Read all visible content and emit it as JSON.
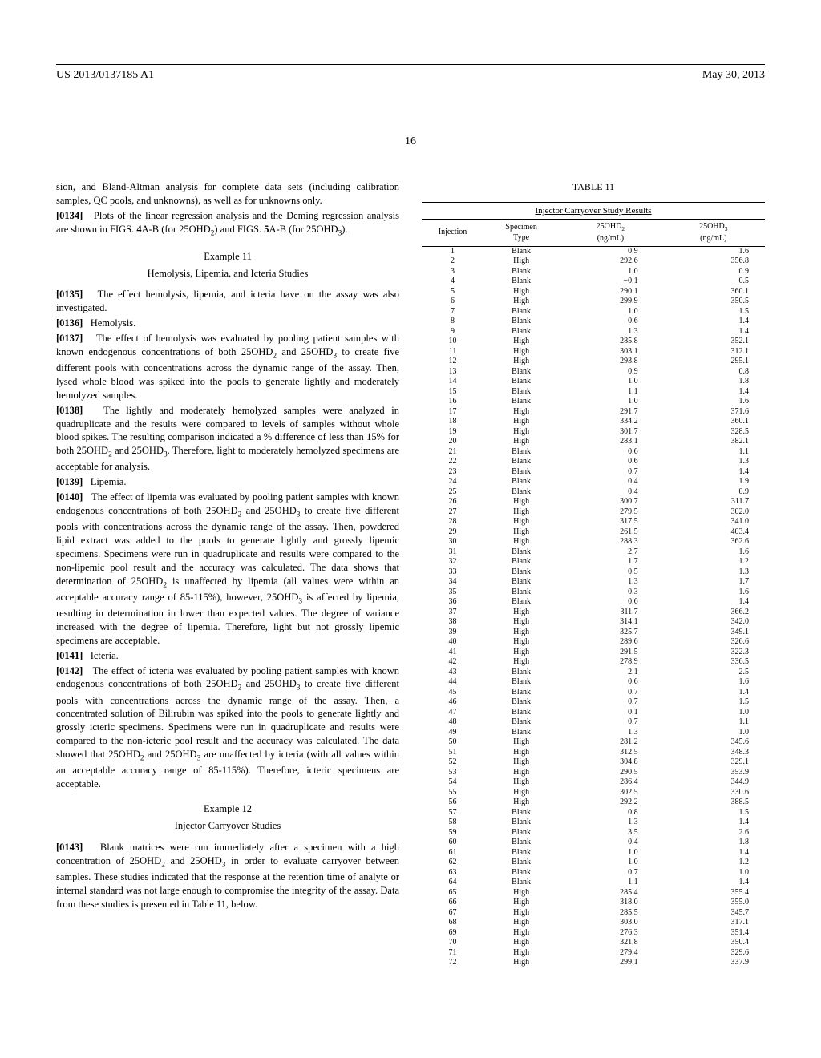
{
  "header": {
    "left": "US 2013/0137185 A1",
    "right": "May 30, 2013",
    "page_number": "16"
  },
  "left_column": {
    "intro_text": "sion, and Bland-Altman analysis for complete data sets (including calibration samples, QC pools, and unknowns), as well as for unknowns only.",
    "paragraphs": [
      {
        "num": "[0134]",
        "text": "Plots of the linear regression analysis and the Deming regression analysis are shown in FIGS. 4A-B (for 25OHD₂) and FIGS. 5A-B (for 25OHD₃)."
      },
      {
        "num": "[0135]",
        "text": "The effect hemolysis, lipemia, and icteria have on the assay was also investigated."
      },
      {
        "num": "[0136]",
        "text": "Hemolysis."
      },
      {
        "num": "[0137]",
        "text": "The effect of hemolysis was evaluated by pooling patient samples with known endogenous concentrations of both 25OHD₂ and 25OHD₃ to create five different pools with concentrations across the dynamic range of the assay. Then, lysed whole blood was spiked into the pools to generate lightly and moderately hemolyzed samples."
      },
      {
        "num": "[0138]",
        "text": "The lightly and moderately hemolyzed samples were analyzed in quadruplicate and the results were compared to levels of samples without whole blood spikes. The resulting comparison indicated a % difference of less than 15% for both 25OHD₂ and 25OHD₃. Therefore, light to moderately hemolyzed specimens are acceptable for analysis."
      },
      {
        "num": "[0139]",
        "text": "Lipemia."
      },
      {
        "num": "[0140]",
        "text": "The effect of lipemia was evaluated by pooling patient samples with known endogenous concentrations of both 25OHD₂ and 25OHD₃ to create five different pools with concentrations across the dynamic range of the assay. Then, powdered lipid extract was added to the pools to generate lightly and grossly lipemic specimens. Specimens were run in quadruplicate and results were compared to the non-lipemic pool result and the accuracy was calculated. The data shows that determination of 25OHD₂ is unaffected by lipemia (all values were within an acceptable accuracy range of 85-115%), however, 25OHD₃ is affected by lipemia, resulting in determination in lower than expected values. The degree of variance increased with the degree of lipemia. Therefore, light but not grossly lipemic specimens are acceptable."
      },
      {
        "num": "[0141]",
        "text": "Icteria."
      },
      {
        "num": "[0142]",
        "text": "The effect of icteria was evaluated by pooling patient samples with known endogenous concentrations of both 25OHD₂ and 25OHD₃ to create five different pools with concentrations across the dynamic range of the assay. Then, a concentrated solution of Bilirubin was spiked into the pools to generate lightly and grossly icteric specimens. Specimens were run in quadruplicate and results were compared to the non-icteric pool result and the accuracy was calculated. The data showed that 25OHD₂ and 25OHD₃ are unaffected by icteria (with all values within an acceptable accuracy range of 85-115%). Therefore, icteric specimens are acceptable."
      },
      {
        "num": "[0143]",
        "text": "Blank matrices were run immediately after a specimen with a high concentration of 25OHD₂ and 25OHD₃ in order to evaluate carryover between samples. These studies indicated that the response at the retention time of analyte or internal standard was not large enough to compromise the integrity of the assay. Data from these studies is presented in Table 11, below."
      }
    ],
    "example11_title": "Example 11",
    "example11_subtitle": "Hemolysis, Lipemia, and Icteria Studies",
    "example12_title": "Example 12",
    "example12_subtitle": "Injector Carryover Studies"
  },
  "table": {
    "title": "TABLE 11",
    "caption": "Injector Carryover Study Results",
    "columns": [
      "Injection",
      "Specimen Type",
      "25OHD₂ (ng/mL)",
      "25OHD₃ (ng/mL)"
    ],
    "rows": [
      [
        "1",
        "Blank",
        "0.9",
        "1.6"
      ],
      [
        "2",
        "High",
        "292.6",
        "356.8"
      ],
      [
        "3",
        "Blank",
        "1.0",
        "0.9"
      ],
      [
        "4",
        "Blank",
        "−0.1",
        "0.5"
      ],
      [
        "5",
        "High",
        "290.1",
        "360.1"
      ],
      [
        "6",
        "High",
        "299.9",
        "350.5"
      ],
      [
        "7",
        "Blank",
        "1.0",
        "1.5"
      ],
      [
        "8",
        "Blank",
        "0.6",
        "1.4"
      ],
      [
        "9",
        "Blank",
        "1.3",
        "1.4"
      ],
      [
        "10",
        "High",
        "285.8",
        "352.1"
      ],
      [
        "11",
        "High",
        "303.1",
        "312.1"
      ],
      [
        "12",
        "High",
        "293.8",
        "295.1"
      ],
      [
        "13",
        "Blank",
        "0.9",
        "0.8"
      ],
      [
        "14",
        "Blank",
        "1.0",
        "1.8"
      ],
      [
        "15",
        "Blank",
        "1.1",
        "1.4"
      ],
      [
        "16",
        "Blank",
        "1.0",
        "1.6"
      ],
      [
        "17",
        "High",
        "291.7",
        "371.6"
      ],
      [
        "18",
        "High",
        "334.2",
        "360.1"
      ],
      [
        "19",
        "High",
        "301.7",
        "328.5"
      ],
      [
        "20",
        "High",
        "283.1",
        "382.1"
      ],
      [
        "21",
        "Blank",
        "0.6",
        "1.1"
      ],
      [
        "22",
        "Blank",
        "0.6",
        "1.3"
      ],
      [
        "23",
        "Blank",
        "0.7",
        "1.4"
      ],
      [
        "24",
        "Blank",
        "0.4",
        "1.9"
      ],
      [
        "25",
        "Blank",
        "0.4",
        "0.9"
      ],
      [
        "26",
        "High",
        "300.7",
        "311.7"
      ],
      [
        "27",
        "High",
        "279.5",
        "302.0"
      ],
      [
        "28",
        "High",
        "317.5",
        "341.0"
      ],
      [
        "29",
        "High",
        "261.5",
        "403.4"
      ],
      [
        "30",
        "High",
        "288.3",
        "362.6"
      ],
      [
        "31",
        "Blank",
        "2.7",
        "1.6"
      ],
      [
        "32",
        "Blank",
        "1.7",
        "1.2"
      ],
      [
        "33",
        "Blank",
        "0.5",
        "1.3"
      ],
      [
        "34",
        "Blank",
        "1.3",
        "1.7"
      ],
      [
        "35",
        "Blank",
        "0.3",
        "1.6"
      ],
      [
        "36",
        "Blank",
        "0.6",
        "1.4"
      ],
      [
        "37",
        "High",
        "311.7",
        "366.2"
      ],
      [
        "38",
        "High",
        "314.1",
        "342.0"
      ],
      [
        "39",
        "High",
        "325.7",
        "349.1"
      ],
      [
        "40",
        "High",
        "289.6",
        "326.6"
      ],
      [
        "41",
        "High",
        "291.5",
        "322.3"
      ],
      [
        "42",
        "High",
        "278.9",
        "336.5"
      ],
      [
        "43",
        "Blank",
        "2.1",
        "2.5"
      ],
      [
        "44",
        "Blank",
        "0.6",
        "1.6"
      ],
      [
        "45",
        "Blank",
        "0.7",
        "1.4"
      ],
      [
        "46",
        "Blank",
        "0.7",
        "1.5"
      ],
      [
        "47",
        "Blank",
        "0.1",
        "1.0"
      ],
      [
        "48",
        "Blank",
        "0.7",
        "1.1"
      ],
      [
        "49",
        "Blank",
        "1.3",
        "1.0"
      ],
      [
        "50",
        "High",
        "281.2",
        "345.6"
      ],
      [
        "51",
        "High",
        "312.5",
        "348.3"
      ],
      [
        "52",
        "High",
        "304.8",
        "329.1"
      ],
      [
        "53",
        "High",
        "290.5",
        "353.9"
      ],
      [
        "54",
        "High",
        "286.4",
        "344.9"
      ],
      [
        "55",
        "High",
        "302.5",
        "330.6"
      ],
      [
        "56",
        "High",
        "292.2",
        "388.5"
      ],
      [
        "57",
        "Blank",
        "0.8",
        "1.5"
      ],
      [
        "58",
        "Blank",
        "1.3",
        "1.4"
      ],
      [
        "59",
        "Blank",
        "3.5",
        "2.6"
      ],
      [
        "60",
        "Blank",
        "0.4",
        "1.8"
      ],
      [
        "61",
        "Blank",
        "1.0",
        "1.4"
      ],
      [
        "62",
        "Blank",
        "1.0",
        "1.2"
      ],
      [
        "63",
        "Blank",
        "0.7",
        "1.0"
      ],
      [
        "64",
        "Blank",
        "1.1",
        "1.4"
      ],
      [
        "65",
        "High",
        "285.4",
        "355.4"
      ],
      [
        "66",
        "High",
        "318.0",
        "355.0"
      ],
      [
        "67",
        "High",
        "285.5",
        "345.7"
      ],
      [
        "68",
        "High",
        "303.0",
        "317.1"
      ],
      [
        "69",
        "High",
        "276.3",
        "351.4"
      ],
      [
        "70",
        "High",
        "321.8",
        "350.4"
      ],
      [
        "71",
        "High",
        "279.4",
        "329.6"
      ],
      [
        "72",
        "High",
        "299.1",
        "337.9"
      ]
    ]
  }
}
